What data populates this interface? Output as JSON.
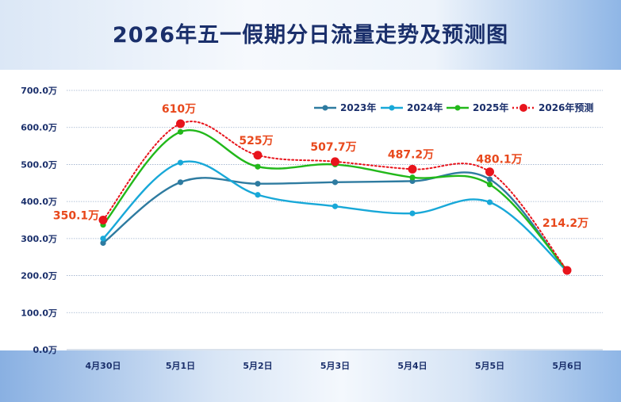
{
  "header": {
    "title": "2026年五一假期分日流量走势及预测图"
  },
  "chart_data": {
    "type": "line",
    "title": "2026年五一假期分日流量走势及预测图",
    "categories": [
      "4月30日",
      "5月1日",
      "5月2日",
      "5月3日",
      "5月4日",
      "5月5日",
      "5月6日"
    ],
    "y_ticks": [
      "0.0万",
      "100.0万",
      "200.0万",
      "300.0万",
      "400.0万",
      "500.0万",
      "600.0万",
      "700.0万"
    ],
    "ylim": [
      0,
      700
    ],
    "grid": true,
    "legend_position": "top-right",
    "series": [
      {
        "name": "2023年",
        "color": "#2e7ba0",
        "style": "solid",
        "values": [
          288,
          452,
          448,
          452,
          455,
          460,
          210
        ]
      },
      {
        "name": "2024年",
        "color": "#18a8d8",
        "style": "solid",
        "values": [
          300,
          505,
          418,
          387,
          368,
          398,
          212
        ]
      },
      {
        "name": "2025年",
        "color": "#22b81a",
        "style": "solid",
        "values": [
          337,
          588,
          494,
          500,
          465,
          446,
          214
        ]
      },
      {
        "name": "2026年预测",
        "color": "#e8141c",
        "style": "dotted",
        "values": [
          350.1,
          610,
          525,
          507.7,
          487.2,
          480.1,
          214.2
        ],
        "labels": [
          "350.1万",
          "610万",
          "525万",
          "507.7万",
          "487.2万",
          "480.1万",
          "214.2万"
        ]
      }
    ]
  }
}
